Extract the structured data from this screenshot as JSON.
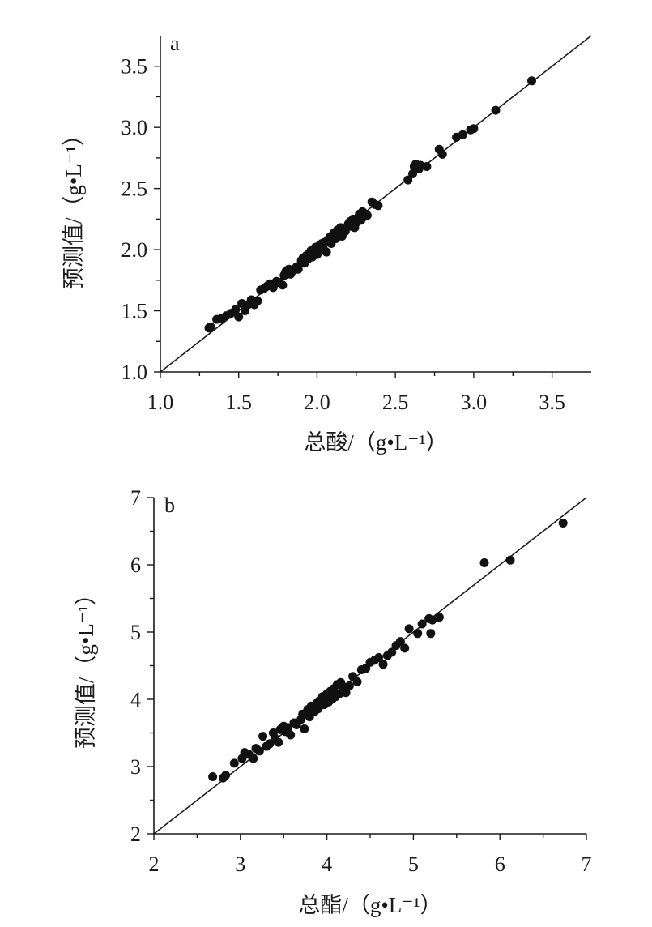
{
  "chart_data": [
    {
      "type": "scatter",
      "panel_label": "a",
      "xlabel": "总酸/（g•L⁻¹）",
      "ylabel": "预测值/（g•L⁻¹）",
      "xlim": [
        1.0,
        3.75
      ],
      "ylim": [
        1.0,
        3.75
      ],
      "xticks": [
        "1.0",
        "1.5",
        "2.0",
        "2.5",
        "3.0",
        "3.5"
      ],
      "yticks": [
        "1.0",
        "1.5",
        "2.0",
        "2.5",
        "3.0",
        "3.5"
      ],
      "reference_line": "y = x",
      "grid": false,
      "points": [
        [
          1.31,
          1.36
        ],
        [
          1.32,
          1.37
        ],
        [
          1.36,
          1.43
        ],
        [
          1.39,
          1.44
        ],
        [
          1.42,
          1.46
        ],
        [
          1.45,
          1.48
        ],
        [
          1.48,
          1.51
        ],
        [
          1.5,
          1.45
        ],
        [
          1.52,
          1.56
        ],
        [
          1.54,
          1.5
        ],
        [
          1.56,
          1.55
        ],
        [
          1.58,
          1.59
        ],
        [
          1.6,
          1.55
        ],
        [
          1.62,
          1.58
        ],
        [
          1.64,
          1.67
        ],
        [
          1.66,
          1.68
        ],
        [
          1.68,
          1.7
        ],
        [
          1.7,
          1.72
        ],
        [
          1.72,
          1.69
        ],
        [
          1.74,
          1.74
        ],
        [
          1.76,
          1.73
        ],
        [
          1.78,
          1.71
        ],
        [
          1.79,
          1.79
        ],
        [
          1.8,
          1.82
        ],
        [
          1.82,
          1.84
        ],
        [
          1.83,
          1.8
        ],
        [
          1.85,
          1.83
        ],
        [
          1.87,
          1.86
        ],
        [
          1.88,
          1.84
        ],
        [
          1.9,
          1.91
        ],
        [
          1.91,
          1.93
        ],
        [
          1.92,
          1.89
        ],
        [
          1.93,
          1.95
        ],
        [
          1.94,
          1.92
        ],
        [
          1.95,
          1.97
        ],
        [
          1.96,
          1.99
        ],
        [
          1.97,
          1.94
        ],
        [
          1.98,
          2.0
        ],
        [
          1.99,
          2.02
        ],
        [
          2.0,
          1.96
        ],
        [
          2.01,
          2.03
        ],
        [
          2.02,
          1.99
        ],
        [
          2.03,
          2.05
        ],
        [
          2.04,
          2.01
        ],
        [
          2.05,
          2.06
        ],
        [
          2.06,
          1.98
        ],
        [
          2.07,
          2.08
        ],
        [
          2.08,
          2.1
        ],
        [
          2.09,
          2.05
        ],
        [
          2.1,
          2.12
        ],
        [
          2.11,
          2.14
        ],
        [
          2.12,
          2.09
        ],
        [
          2.13,
          2.16
        ],
        [
          2.14,
          2.13
        ],
        [
          2.15,
          2.18
        ],
        [
          2.16,
          2.11
        ],
        [
          2.18,
          2.15
        ],
        [
          2.2,
          2.21
        ],
        [
          2.21,
          2.23
        ],
        [
          2.22,
          2.19
        ],
        [
          2.23,
          2.25
        ],
        [
          2.24,
          2.18
        ],
        [
          2.25,
          2.22
        ],
        [
          2.26,
          2.26
        ],
        [
          2.27,
          2.29
        ],
        [
          2.28,
          2.24
        ],
        [
          2.29,
          2.31
        ],
        [
          2.3,
          2.27
        ],
        [
          2.32,
          2.28
        ],
        [
          2.35,
          2.39
        ],
        [
          2.37,
          2.37
        ],
        [
          2.39,
          2.36
        ],
        [
          2.58,
          2.57
        ],
        [
          2.61,
          2.62
        ],
        [
          2.62,
          2.68
        ],
        [
          2.63,
          2.7
        ],
        [
          2.65,
          2.66
        ],
        [
          2.66,
          2.69
        ],
        [
          2.7,
          2.68
        ],
        [
          2.78,
          2.82
        ],
        [
          2.8,
          2.78
        ],
        [
          2.89,
          2.92
        ],
        [
          2.93,
          2.94
        ],
        [
          2.98,
          2.98
        ],
        [
          3.0,
          2.99
        ],
        [
          3.14,
          3.14
        ],
        [
          3.37,
          3.38
        ]
      ]
    },
    {
      "type": "scatter",
      "panel_label": "b",
      "xlabel": "总酯/（g•L⁻¹）",
      "ylabel": "预测值/（g•L⁻¹）",
      "xlim": [
        2,
        7
      ],
      "ylim": [
        2,
        7
      ],
      "xticks": [
        "2",
        "3",
        "4",
        "5",
        "6",
        "7"
      ],
      "yticks": [
        "2",
        "3",
        "4",
        "5",
        "6",
        "7"
      ],
      "reference_line": "y = x",
      "grid": false,
      "points": [
        [
          2.68,
          2.85
        ],
        [
          2.8,
          2.83
        ],
        [
          2.83,
          2.87
        ],
        [
          2.93,
          3.05
        ],
        [
          3.02,
          3.12
        ],
        [
          3.05,
          3.21
        ],
        [
          3.1,
          3.18
        ],
        [
          3.15,
          3.12
        ],
        [
          3.18,
          3.27
        ],
        [
          3.22,
          3.23
        ],
        [
          3.26,
          3.45
        ],
        [
          3.3,
          3.3
        ],
        [
          3.34,
          3.34
        ],
        [
          3.38,
          3.5
        ],
        [
          3.4,
          3.42
        ],
        [
          3.44,
          3.36
        ],
        [
          3.46,
          3.55
        ],
        [
          3.5,
          3.6
        ],
        [
          3.52,
          3.52
        ],
        [
          3.55,
          3.58
        ],
        [
          3.58,
          3.47
        ],
        [
          3.62,
          3.65
        ],
        [
          3.65,
          3.62
        ],
        [
          3.7,
          3.7
        ],
        [
          3.72,
          3.78
        ],
        [
          3.74,
          3.56
        ],
        [
          3.76,
          3.8
        ],
        [
          3.78,
          3.85
        ],
        [
          3.8,
          3.74
        ],
        [
          3.82,
          3.9
        ],
        [
          3.86,
          3.82
        ],
        [
          3.88,
          3.94
        ],
        [
          3.9,
          3.86
        ],
        [
          3.92,
          3.98
        ],
        [
          3.95,
          4.04
        ],
        [
          3.97,
          3.92
        ],
        [
          4.0,
          4.08
        ],
        [
          4.02,
          3.96
        ],
        [
          4.04,
          4.12
        ],
        [
          4.06,
          4.0
        ],
        [
          4.08,
          4.16
        ],
        [
          4.1,
          4.04
        ],
        [
          4.12,
          4.22
        ],
        [
          4.14,
          4.08
        ],
        [
          4.16,
          4.25
        ],
        [
          4.18,
          4.12
        ],
        [
          4.2,
          4.18
        ],
        [
          4.22,
          4.1
        ],
        [
          4.26,
          4.2
        ],
        [
          4.3,
          4.34
        ],
        [
          4.35,
          4.26
        ],
        [
          4.4,
          4.44
        ],
        [
          4.45,
          4.46
        ],
        [
          4.5,
          4.55
        ],
        [
          4.55,
          4.58
        ],
        [
          4.6,
          4.62
        ],
        [
          4.65,
          4.52
        ],
        [
          4.7,
          4.65
        ],
        [
          4.75,
          4.7
        ],
        [
          4.8,
          4.8
        ],
        [
          4.85,
          4.86
        ],
        [
          4.9,
          4.76
        ],
        [
          4.95,
          5.05
        ],
        [
          5.05,
          4.98
        ],
        [
          5.1,
          5.12
        ],
        [
          5.18,
          5.2
        ],
        [
          5.2,
          4.98
        ],
        [
          5.22,
          5.18
        ],
        [
          5.3,
          5.22
        ],
        [
          5.82,
          6.03
        ],
        [
          6.12,
          6.07
        ],
        [
          6.73,
          6.62
        ]
      ]
    }
  ]
}
